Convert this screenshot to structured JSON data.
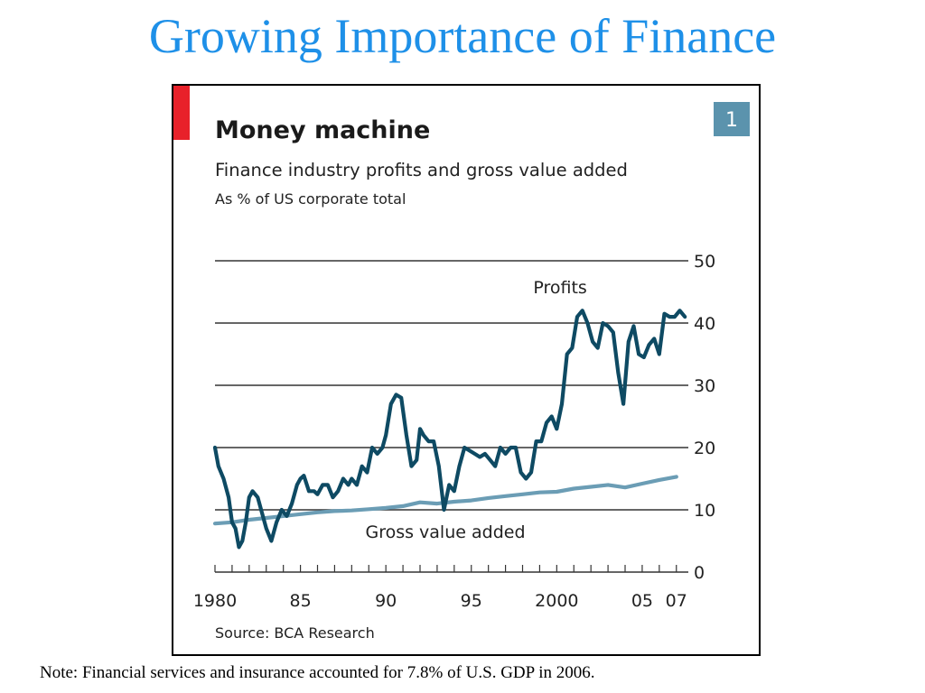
{
  "slide": {
    "title": "Growing Importance of Finance",
    "note": "Note: Financial services and insurance accounted for 7.8% of U.S. GDP in 2006."
  },
  "colors": {
    "title": "#1e90e8",
    "accent_bar": "#e8212a",
    "badge": "#5b93ad",
    "profits_line": "#0e4a63",
    "gva_line": "#6b9db5",
    "grid": "#333333"
  },
  "chart_data": {
    "type": "line",
    "badge": "1",
    "title": "Money machine",
    "subtitle": "Finance industry profits and gross value added",
    "unit_note": "As % of US corporate total",
    "source": "Source: BCA Research",
    "xlim": [
      1980,
      2007.7
    ],
    "ylim": [
      0,
      50
    ],
    "yticks": [
      0,
      10,
      20,
      30,
      40,
      50
    ],
    "xtick_labels": [
      {
        "x": 1980,
        "label": "1980"
      },
      {
        "x": 1985,
        "label": "85"
      },
      {
        "x": 1990,
        "label": "90"
      },
      {
        "x": 1995,
        "label": "95"
      },
      {
        "x": 2000,
        "label": "2000"
      },
      {
        "x": 2005,
        "label": "05"
      },
      {
        "x": 2007,
        "label": "07"
      }
    ],
    "grid": true,
    "y_axis_side": "right",
    "series": [
      {
        "name": "Profits",
        "x": [
          1980.0,
          1980.2,
          1980.5,
          1980.8,
          1981.0,
          1981.2,
          1981.4,
          1981.6,
          1981.8,
          1982.0,
          1982.2,
          1982.5,
          1982.8,
          1983.0,
          1983.3,
          1983.6,
          1983.9,
          1984.2,
          1984.5,
          1984.8,
          1985.0,
          1985.2,
          1985.5,
          1985.8,
          1986.0,
          1986.3,
          1986.6,
          1986.9,
          1987.2,
          1987.5,
          1987.8,
          1988.0,
          1988.3,
          1988.6,
          1988.9,
          1989.2,
          1989.5,
          1989.8,
          1990.0,
          1990.3,
          1990.6,
          1990.9,
          1991.2,
          1991.5,
          1991.8,
          1992.0,
          1992.2,
          1992.5,
          1992.8,
          1993.1,
          1993.4,
          1993.7,
          1994.0,
          1994.3,
          1994.6,
          1994.9,
          1995.2,
          1995.5,
          1995.8,
          1996.1,
          1996.4,
          1996.7,
          1997.0,
          1997.3,
          1997.6,
          1997.9,
          1998.2,
          1998.5,
          1998.8,
          1999.1,
          1999.4,
          1999.7,
          2000.0,
          2000.3,
          2000.6,
          2000.9,
          2001.2,
          2001.5,
          2001.8,
          2002.1,
          2002.4,
          2002.7,
          2003.0,
          2003.3,
          2003.6,
          2003.9,
          2004.2,
          2004.5,
          2004.8,
          2005.1,
          2005.4,
          2005.7,
          2006.0,
          2006.3,
          2006.6,
          2006.9,
          2007.2,
          2007.5
        ],
        "values": [
          20,
          17,
          15,
          12,
          8,
          7,
          4,
          5,
          8,
          12,
          13,
          12,
          9,
          7,
          5,
          8,
          10,
          9,
          11,
          14,
          15,
          15.5,
          13,
          13,
          12.5,
          14,
          14,
          12,
          13,
          15,
          14,
          15,
          14,
          17,
          16,
          20,
          19,
          20,
          22,
          27,
          28.5,
          28,
          22,
          17,
          18,
          23,
          22,
          21,
          21,
          17,
          10,
          14,
          13,
          17,
          20,
          19.5,
          19,
          18.5,
          19,
          18,
          17,
          20,
          19,
          20,
          20,
          16,
          15,
          16,
          21,
          21,
          24,
          25,
          23,
          27,
          35,
          36,
          41,
          42,
          40,
          37,
          36,
          40,
          39.5,
          38.5,
          32,
          27,
          37,
          39.5,
          35,
          34.5,
          36.5,
          37.5,
          35,
          41.5,
          41,
          41,
          42,
          41
        ]
      },
      {
        "name": "Gross value added",
        "x": [
          1980,
          1981,
          1982,
          1983,
          1984,
          1985,
          1986,
          1987,
          1988,
          1989,
          1990,
          1991,
          1992,
          1993,
          1994,
          1995,
          1996,
          1997,
          1998,
          1999,
          2000,
          2001,
          2002,
          2003,
          2004,
          2005,
          2006,
          2007
        ],
        "values": [
          7.8,
          8.0,
          8.4,
          8.7,
          9.0,
          9.3,
          9.6,
          9.8,
          9.9,
          10.1,
          10.3,
          10.6,
          11.2,
          11.0,
          11.3,
          11.5,
          11.9,
          12.2,
          12.5,
          12.8,
          12.9,
          13.4,
          13.7,
          14.0,
          13.6,
          14.2,
          14.8,
          15.3
        ]
      }
    ],
    "annotations": [
      {
        "text": "Profits",
        "x": 2000.2,
        "y": 44.8
      },
      {
        "text": "Gross value added",
        "x": 1988.8,
        "y": 5.5
      }
    ]
  }
}
